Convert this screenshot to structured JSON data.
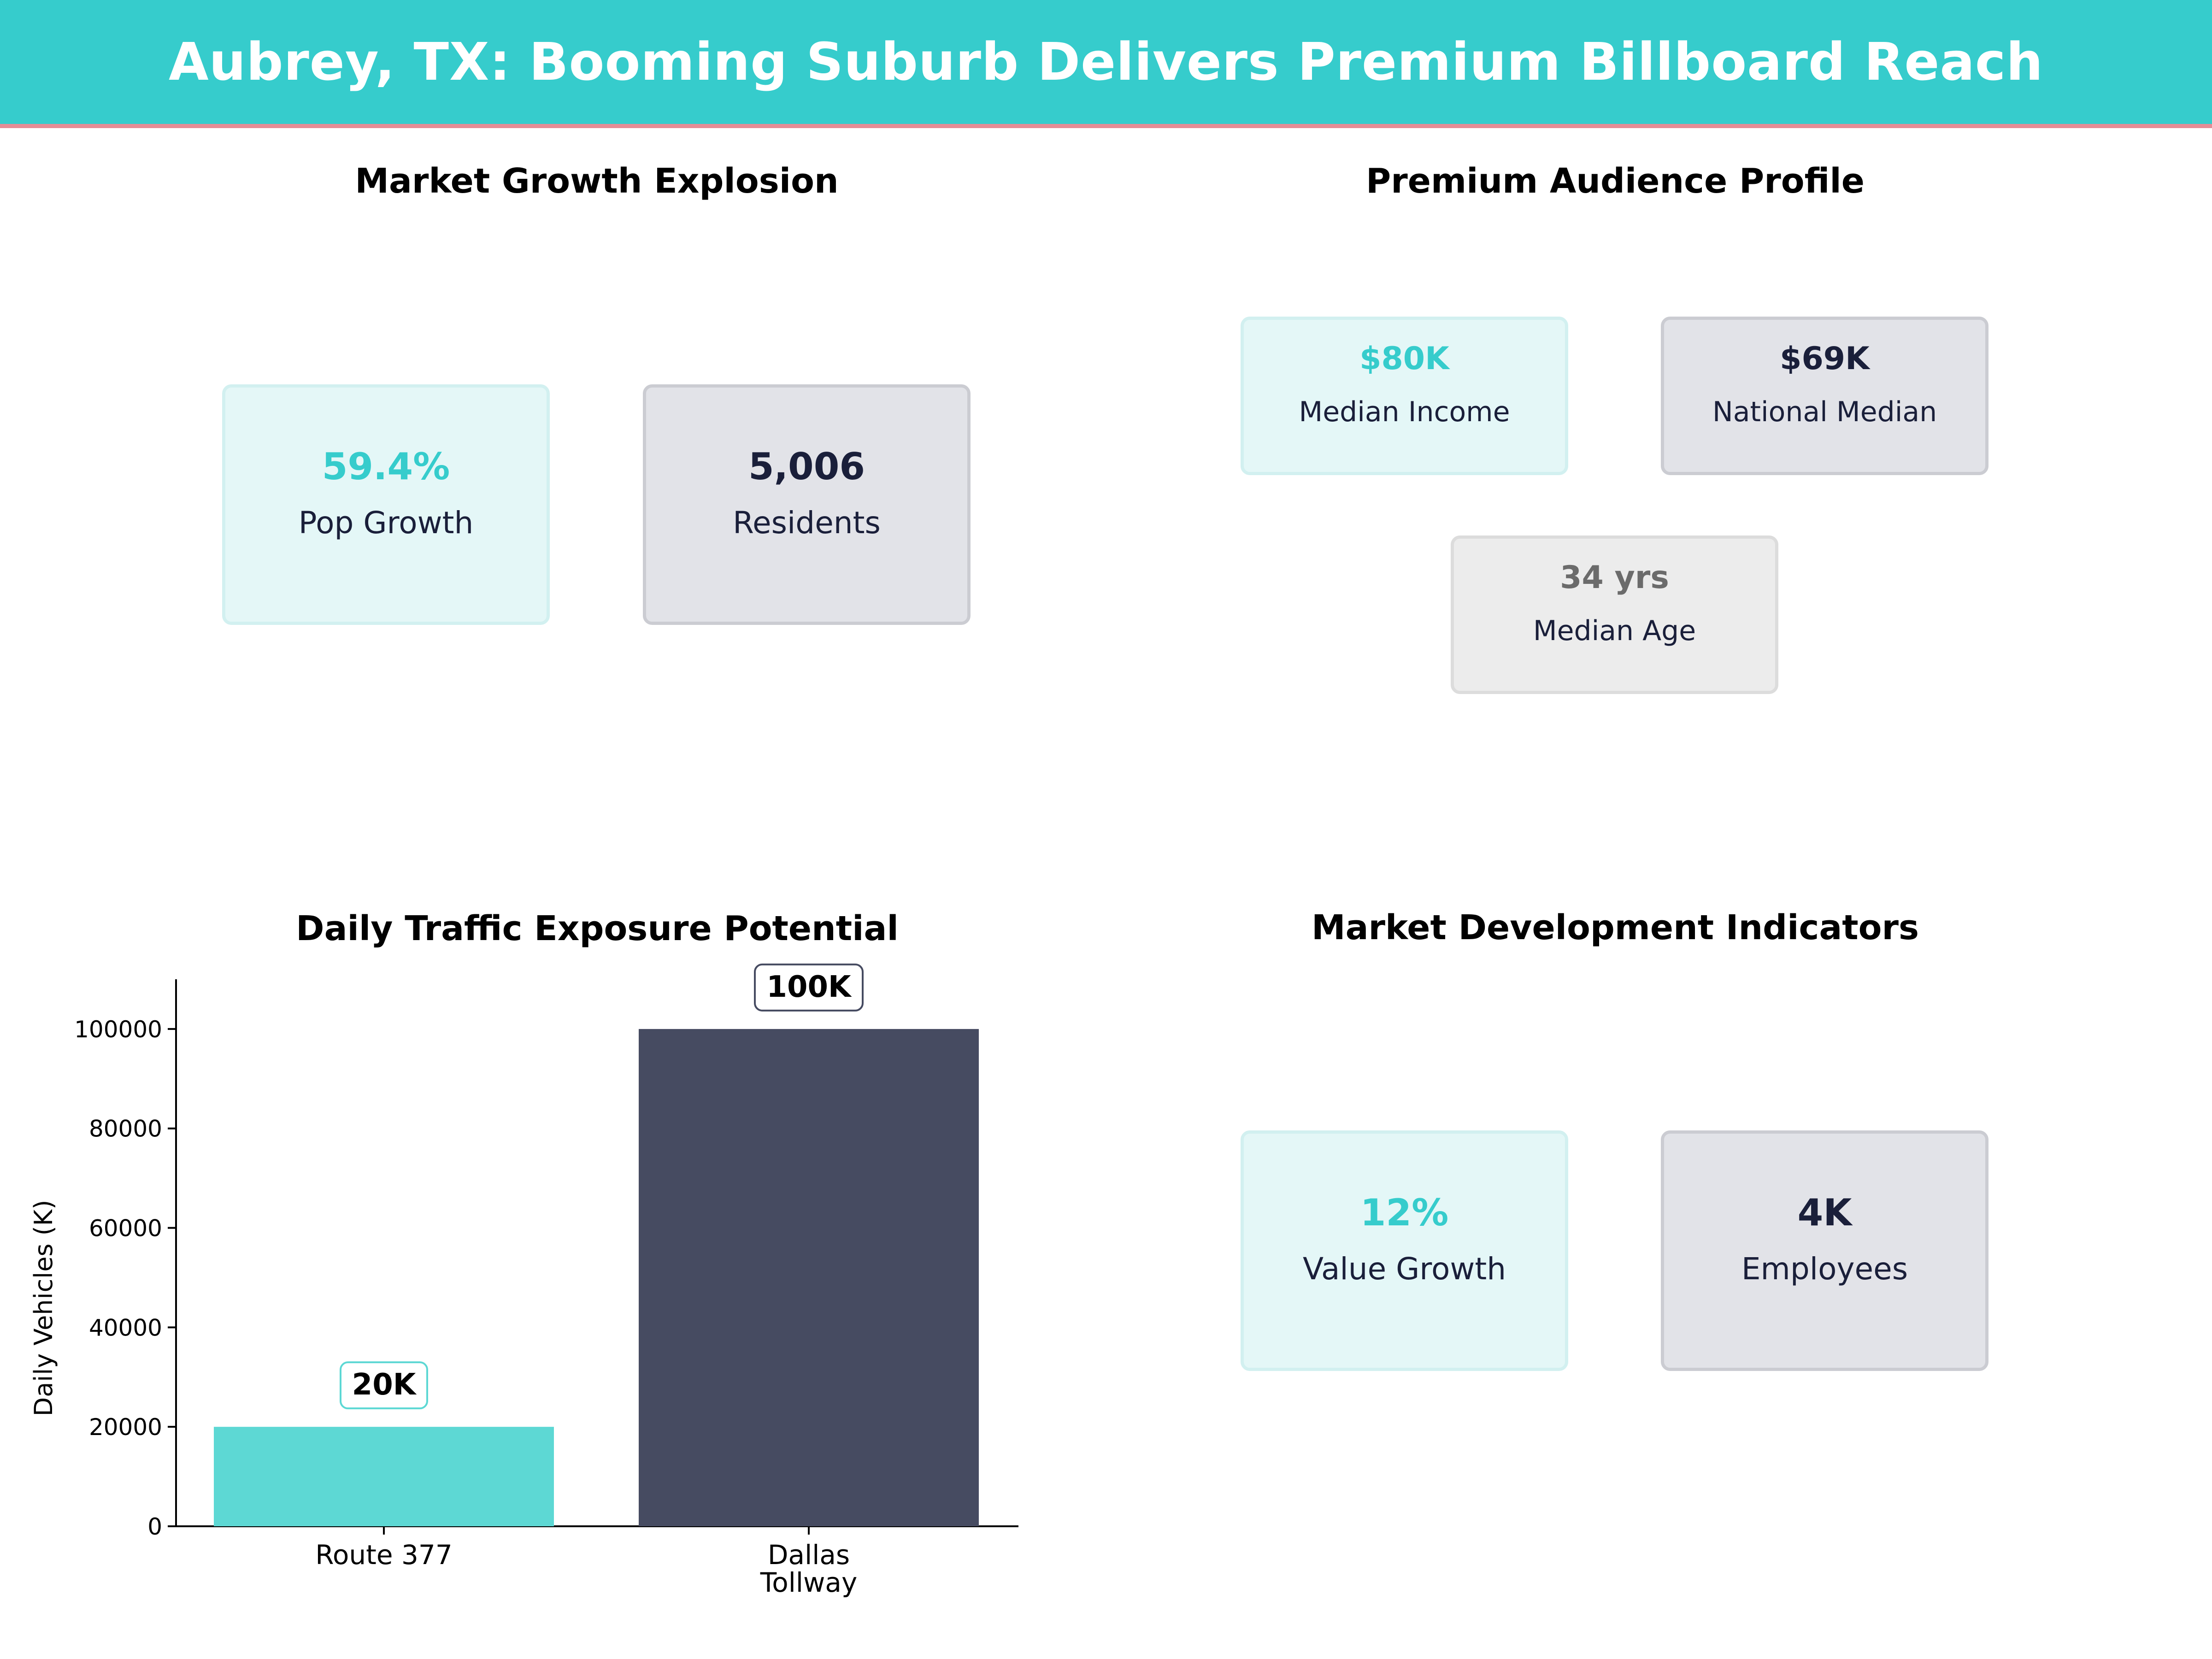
{
  "header": {
    "title": "Aubrey, TX: Booming Suburb Delivers Premium Billboard Reach"
  },
  "colors": {
    "teal": "#36cccc",
    "navy": "#1a1f3a",
    "accent_line": "#e58d96",
    "bar_teal": "#5dd8d4",
    "bar_navy": "#464b61"
  },
  "market_growth": {
    "title": "Market Growth Explosion",
    "cards": [
      {
        "value": "59.4%",
        "label": "Pop Growth"
      },
      {
        "value": "5,006",
        "label": "Residents"
      }
    ]
  },
  "audience": {
    "title": "Premium Audience Profile",
    "cards": [
      {
        "value": "$80K",
        "label": "Median Income"
      },
      {
        "value": "$69K",
        "label": "National Median"
      },
      {
        "value": "34 yrs",
        "label": "Median Age"
      }
    ]
  },
  "development": {
    "title": "Market Development Indicators",
    "cards": [
      {
        "value": "12%",
        "label": "Value Growth"
      },
      {
        "value": "4K",
        "label": "Employees"
      }
    ]
  },
  "chart_data": {
    "type": "bar",
    "title": "Daily Traffic Exposure Potential",
    "categories": [
      "Route 377",
      "Dallas\nTollway"
    ],
    "values": [
      20000,
      100000
    ],
    "data_labels": [
      "20K",
      "100K"
    ],
    "xlabel": "",
    "ylabel": "Daily Vehicles (K)",
    "ylim": [
      0,
      110000
    ],
    "yticks": [
      0,
      20000,
      40000,
      60000,
      80000,
      100000
    ],
    "grid": false
  }
}
